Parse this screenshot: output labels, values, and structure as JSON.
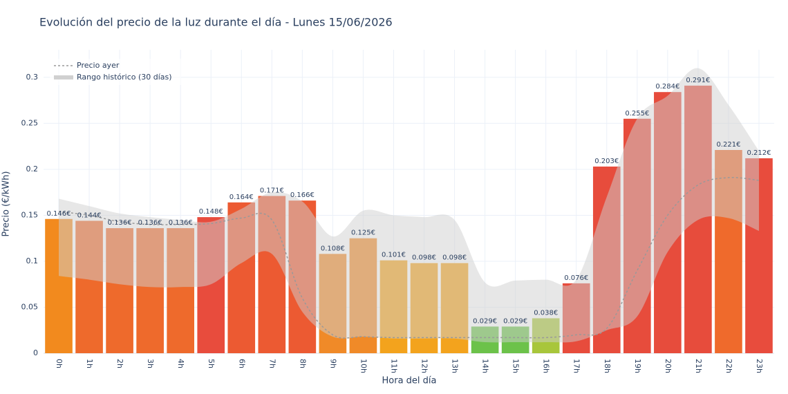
{
  "chart_data": {
    "type": "bar",
    "title": "Evolución del precio de la luz durante el día - Lunes 15/06/2026",
    "x_label": "Hora del día",
    "y_label": "Precio (€/kWh)",
    "categories": [
      "0h",
      "1h",
      "2h",
      "3h",
      "4h",
      "5h",
      "6h",
      "7h",
      "8h",
      "9h",
      "10h",
      "11h",
      "12h",
      "13h",
      "14h",
      "15h",
      "16h",
      "17h",
      "18h",
      "19h",
      "20h",
      "21h",
      "22h",
      "23h"
    ],
    "values": [
      0.146,
      0.144,
      0.136,
      0.136,
      0.136,
      0.148,
      0.164,
      0.171,
      0.166,
      0.108,
      0.125,
      0.101,
      0.098,
      0.098,
      0.029,
      0.029,
      0.038,
      0.076,
      0.203,
      0.255,
      0.284,
      0.291,
      0.221,
      0.212
    ],
    "value_labels": [
      "0.146€",
      "0.144€",
      "0.136€",
      "0.136€",
      "0.136€",
      "0.148€",
      "0.164€",
      "0.171€",
      "0.166€",
      "0.108€",
      "0.125€",
      "0.101€",
      "0.098€",
      "0.098€",
      "0.029€",
      "0.029€",
      "0.038€",
      "0.076€",
      "0.203€",
      "0.255€",
      "0.284€",
      "0.291€",
      "0.221€",
      "0.212€"
    ],
    "colors": [
      "#f28a1e",
      "#ee6a2c",
      "#ee6a2c",
      "#ee6a2c",
      "#ee6a2c",
      "#e84c3d",
      "#ec5a32",
      "#ec5a32",
      "#ec5a32",
      "#f08a28",
      "#f08a28",
      "#f3a31d",
      "#f3a31d",
      "#f3a31d",
      "#6cc24a",
      "#6cc24a",
      "#a8c63b",
      "#e74c3c",
      "#e74c3c",
      "#e74c3c",
      "#e74c3c",
      "#e74c3c",
      "#ef6a2c",
      "#e84c3d"
    ],
    "series": [
      {
        "name": "Precio ayer",
        "type": "line",
        "color": "#999999",
        "values": [
          0.154,
          0.15,
          0.143,
          0.14,
          0.14,
          0.141,
          0.147,
          0.145,
          0.06,
          0.02,
          0.018,
          0.017,
          0.017,
          0.017,
          0.017,
          0.017,
          0.017,
          0.02,
          0.027,
          0.09,
          0.15,
          0.183,
          0.191,
          0.188
        ]
      }
    ],
    "band": {
      "name": "Rango histórico (30 días)",
      "color": "#d0d0d0",
      "upper": [
        0.168,
        0.16,
        0.152,
        0.148,
        0.145,
        0.143,
        0.157,
        0.175,
        0.165,
        0.127,
        0.155,
        0.15,
        0.148,
        0.145,
        0.077,
        0.079,
        0.08,
        0.08,
        0.17,
        0.255,
        0.28,
        0.31,
        0.27,
        0.22
      ],
      "lower": [
        0.084,
        0.08,
        0.075,
        0.072,
        0.072,
        0.075,
        0.098,
        0.108,
        0.045,
        0.018,
        0.018,
        0.016,
        0.016,
        0.016,
        0.012,
        0.012,
        0.012,
        0.013,
        0.025,
        0.04,
        0.11,
        0.145,
        0.147,
        0.133
      ]
    },
    "ylim": [
      0,
      0.33
    ],
    "yticks": [
      0,
      0.05,
      0.1,
      0.15,
      0.2,
      0.25,
      0.3
    ],
    "grid": true
  }
}
